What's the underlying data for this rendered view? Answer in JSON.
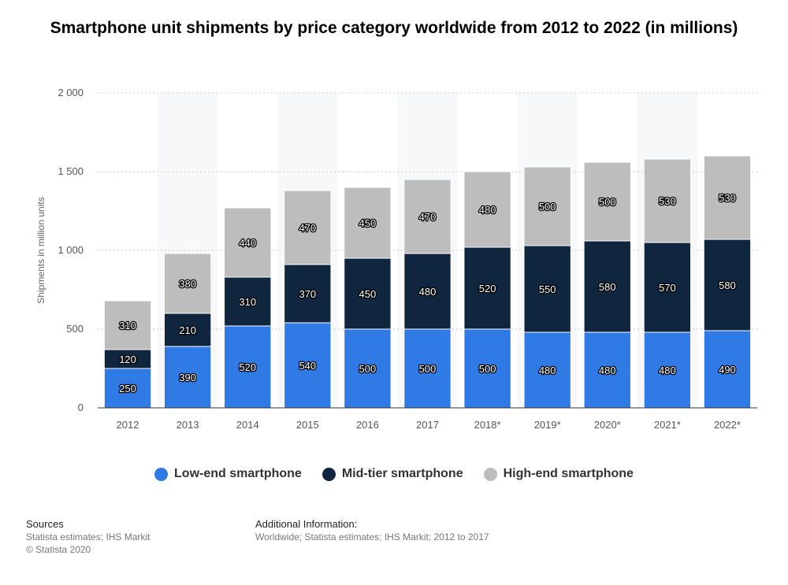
{
  "chart_data": {
    "type": "bar",
    "stacked": true,
    "title": "Smartphone unit shipments by price category worldwide from 2012 to 2022 (in millions)",
    "ylabel": "Shipments in million units",
    "xlabel": "",
    "ylim": [
      0,
      2000
    ],
    "yticks": [
      0,
      500,
      1000,
      1500,
      2000
    ],
    "ytick_labels": [
      "0",
      "500",
      "1 000",
      "1 500",
      "2 000"
    ],
    "grid": true,
    "legend_position": "bottom",
    "categories": [
      "2012",
      "2013",
      "2014",
      "2015",
      "2016",
      "2017",
      "2018*",
      "2019*",
      "2020*",
      "2021*",
      "2022*"
    ],
    "series": [
      {
        "name": "Low-end smartphone",
        "color": "#2f7ae5",
        "values": [
          250,
          390,
          520,
          540,
          500,
          500,
          500,
          480,
          480,
          480,
          490
        ]
      },
      {
        "name": "Mid-tier smartphone",
        "color": "#10263f",
        "values": [
          120,
          210,
          310,
          370,
          450,
          480,
          520,
          550,
          580,
          570,
          580
        ]
      },
      {
        "name": "High-end smartphone",
        "color": "#bdbdbd",
        "values": [
          310,
          380,
          440,
          470,
          450,
          470,
          480,
          500,
          500,
          530,
          530
        ]
      }
    ]
  },
  "footer": {
    "sources_heading": "Sources",
    "sources_line1": "Statista estimates; IHS Markit",
    "sources_line2": "© Statista 2020",
    "info_heading": "Additional Information:",
    "info_line1": "Worldwide; Statista estimates; IHS Markit; 2012 to 2017"
  }
}
